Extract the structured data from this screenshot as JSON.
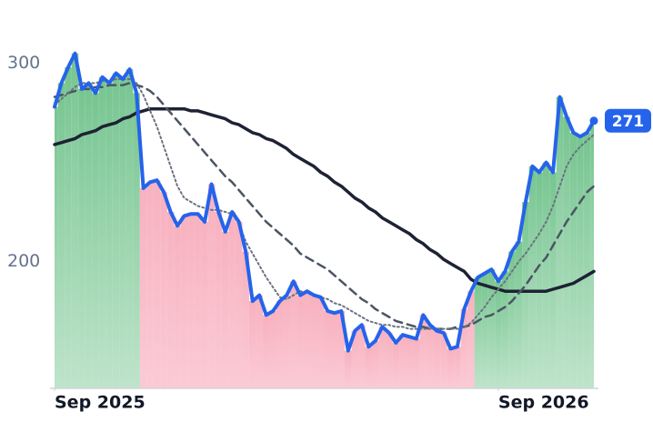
{
  "chart_data": {
    "type": "line",
    "x": [
      0,
      1,
      2,
      3,
      4,
      5,
      6,
      7,
      8,
      9,
      10,
      11,
      12,
      13,
      14,
      15,
      16,
      17,
      18,
      19,
      20,
      21,
      22,
      23,
      24,
      25,
      26,
      27,
      28,
      29,
      30,
      31,
      32,
      33,
      34,
      35,
      36,
      37,
      38,
      39,
      40,
      41,
      42,
      43,
      44,
      45,
      46,
      47,
      48,
      49,
      50,
      51,
      52,
      53,
      54,
      55,
      56,
      57,
      58,
      59,
      60,
      61,
      62,
      63,
      64,
      65,
      66,
      67,
      68,
      69,
      70,
      71,
      72,
      73,
      74,
      75,
      76,
      77,
      78,
      79
    ],
    "xlim": [
      0,
      79
    ],
    "xticks": [
      {
        "value": 0,
        "label": "Sep 2025"
      },
      {
        "value": 65,
        "label": "Sep 2026"
      }
    ],
    "ylim": [
      136,
      320
    ],
    "yticks": [
      200,
      300
    ],
    "fill_above_color": "#6fc28a",
    "fill_below_color": "#f7a8b8",
    "series": [
      {
        "color": "#2563eb",
        "width": 4,
        "dash": "none",
        "values": [
          278,
          290,
          298,
          305,
          287,
          290,
          285,
          293,
          290,
          295,
          292,
          297,
          285,
          237,
          240,
          241,
          235,
          225,
          218,
          223,
          224,
          224,
          220,
          239,
          225,
          215,
          225,
          220,
          205,
          180,
          183,
          173,
          175,
          180,
          183,
          190,
          183,
          185,
          183,
          182,
          175,
          174,
          175,
          155,
          165,
          168,
          157,
          160,
          167,
          164,
          159,
          163,
          162,
          161,
          173,
          168,
          165,
          164,
          156,
          157,
          176,
          185,
          192,
          194,
          196,
          190,
          195,
          205,
          210,
          230,
          248,
          245,
          250,
          245,
          283,
          273,
          265,
          263,
          265,
          271
        ]
      },
      {
        "color": "#6b7280",
        "width": 2,
        "dash": "2 3",
        "values": [
          279,
          282,
          285,
          288,
          290,
          290,
          290,
          291,
          291,
          292,
          292,
          292,
          290,
          284,
          276,
          268,
          258,
          248,
          238,
          232,
          230,
          228,
          227,
          226,
          226,
          225,
          224,
          219,
          210,
          204,
          198,
          192,
          187,
          182,
          181,
          183,
          185,
          184,
          183,
          182,
          181,
          179,
          178,
          176,
          174,
          172,
          170,
          169,
          168,
          168,
          167,
          167,
          166,
          166,
          166,
          166,
          166,
          166,
          166,
          166,
          167,
          169,
          173,
          177,
          182,
          186,
          190,
          195,
          200,
          204,
          209,
          214,
          220,
          228,
          238,
          248,
          254,
          258,
          261,
          264
        ]
      },
      {
        "color": "#4b5563",
        "width": 2.5,
        "dash": "9 6",
        "values": [
          283,
          284,
          285,
          286,
          287,
          287,
          288,
          288,
          289,
          289,
          289,
          290,
          289,
          288,
          286,
          283,
          279,
          275,
          271,
          267,
          263,
          259,
          255,
          251,
          247,
          243,
          240,
          236,
          232,
          228,
          224,
          220,
          217,
          214,
          211,
          208,
          204,
          202,
          200,
          198,
          196,
          193,
          190,
          187,
          184,
          181,
          179,
          176,
          174,
          172,
          170,
          169,
          168,
          167,
          167,
          166,
          166,
          166,
          166,
          167,
          167,
          168,
          170,
          172,
          173,
          175,
          177,
          180,
          184,
          188,
          193,
          198,
          202,
          208,
          214,
          220,
          225,
          230,
          235,
          238
        ]
      },
      {
        "color": "#1e2235",
        "width": 3.5,
        "dash": "none",
        "values": [
          259,
          260,
          261,
          262,
          264,
          265,
          266,
          268,
          269,
          270,
          272,
          273,
          275,
          276,
          277,
          277,
          277,
          277,
          277,
          277,
          276,
          276,
          275,
          274,
          273,
          272,
          270,
          269,
          267,
          265,
          264,
          262,
          261,
          259,
          257,
          254,
          252,
          250,
          248,
          245,
          243,
          240,
          238,
          235,
          232,
          230,
          227,
          225,
          222,
          220,
          218,
          216,
          214,
          211,
          209,
          206,
          204,
          201,
          199,
          197,
          195,
          191,
          189,
          188,
          187,
          186,
          185,
          185,
          185,
          185,
          185,
          185,
          185,
          186,
          187,
          188,
          189,
          191,
          193,
          195
        ]
      }
    ]
  }
}
